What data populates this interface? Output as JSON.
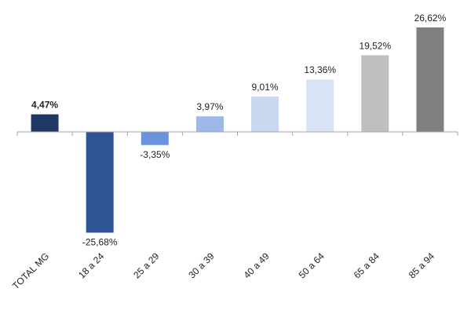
{
  "chart_data": {
    "type": "bar",
    "title": "",
    "xlabel": "",
    "ylabel": "",
    "categories": [
      "TOTAL MG",
      "18 a 24",
      "25 a 29",
      "30 a 39",
      "40 a 49",
      "50 a 64",
      "65 a 84",
      "85 a 94"
    ],
    "values": [
      4.47,
      -25.68,
      -3.35,
      3.97,
      9.01,
      13.36,
      19.52,
      26.62
    ],
    "value_labels": [
      "4,47%",
      "-25,68%",
      "-3,35%",
      "3,97%",
      "9,01%",
      "13,36%",
      "19,52%",
      "26,62%"
    ],
    "highlight_label_index": 0,
    "bar_colors": [
      "#1f3864",
      "#2f5597",
      "#6a93dc",
      "#9db8e6",
      "#c9d7f0",
      "#dae3f3",
      "#bfbfbf",
      "#7f7f7f"
    ],
    "axis_color": "#a6a6a6",
    "ylim": [
      -30,
      30
    ],
    "grid": false,
    "legend": "none"
  }
}
